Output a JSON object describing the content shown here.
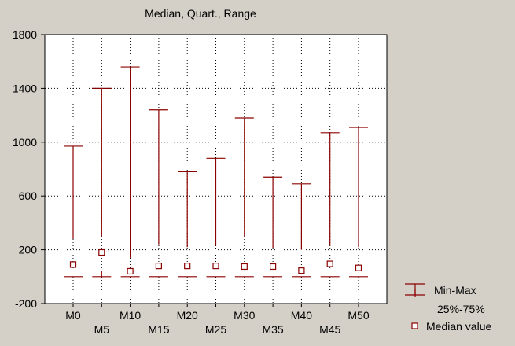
{
  "chart_data": {
    "type": "box",
    "title": "Median, Quart., Range",
    "xlabel": "",
    "ylabel": "",
    "ylim": [
      -200,
      1800
    ],
    "yticks": [
      -200,
      200,
      600,
      1000,
      1400,
      1800
    ],
    "grid": true,
    "legend_position": "bottom-right",
    "categories": [
      "M0",
      "M5",
      "M10",
      "M15",
      "M20",
      "M25",
      "M30",
      "M35",
      "M40",
      "M45",
      "M50"
    ],
    "series": [
      {
        "name": "Min-Max",
        "min": [
          280,
          300,
          140,
          240,
          220,
          230,
          300,
          210,
          200,
          230,
          220
        ],
        "max": [
          970,
          1400,
          1560,
          1240,
          780,
          880,
          1180,
          740,
          690,
          1070,
          1110
        ]
      },
      {
        "name": "25%-75%",
        "q1": [
          0,
          0,
          0,
          0,
          0,
          0,
          0,
          0,
          0,
          0,
          0
        ],
        "q3": [
          0,
          40,
          0,
          0,
          0,
          0,
          0,
          0,
          0,
          0,
          0
        ]
      },
      {
        "name": "Median value",
        "median": [
          90,
          180,
          40,
          80,
          80,
          80,
          75,
          75,
          45,
          95,
          65
        ]
      }
    ]
  },
  "colors": {
    "background": "#d4d0c8",
    "plot_background": "#ffffff",
    "mark": "#8b0000",
    "grid": "#000000"
  }
}
